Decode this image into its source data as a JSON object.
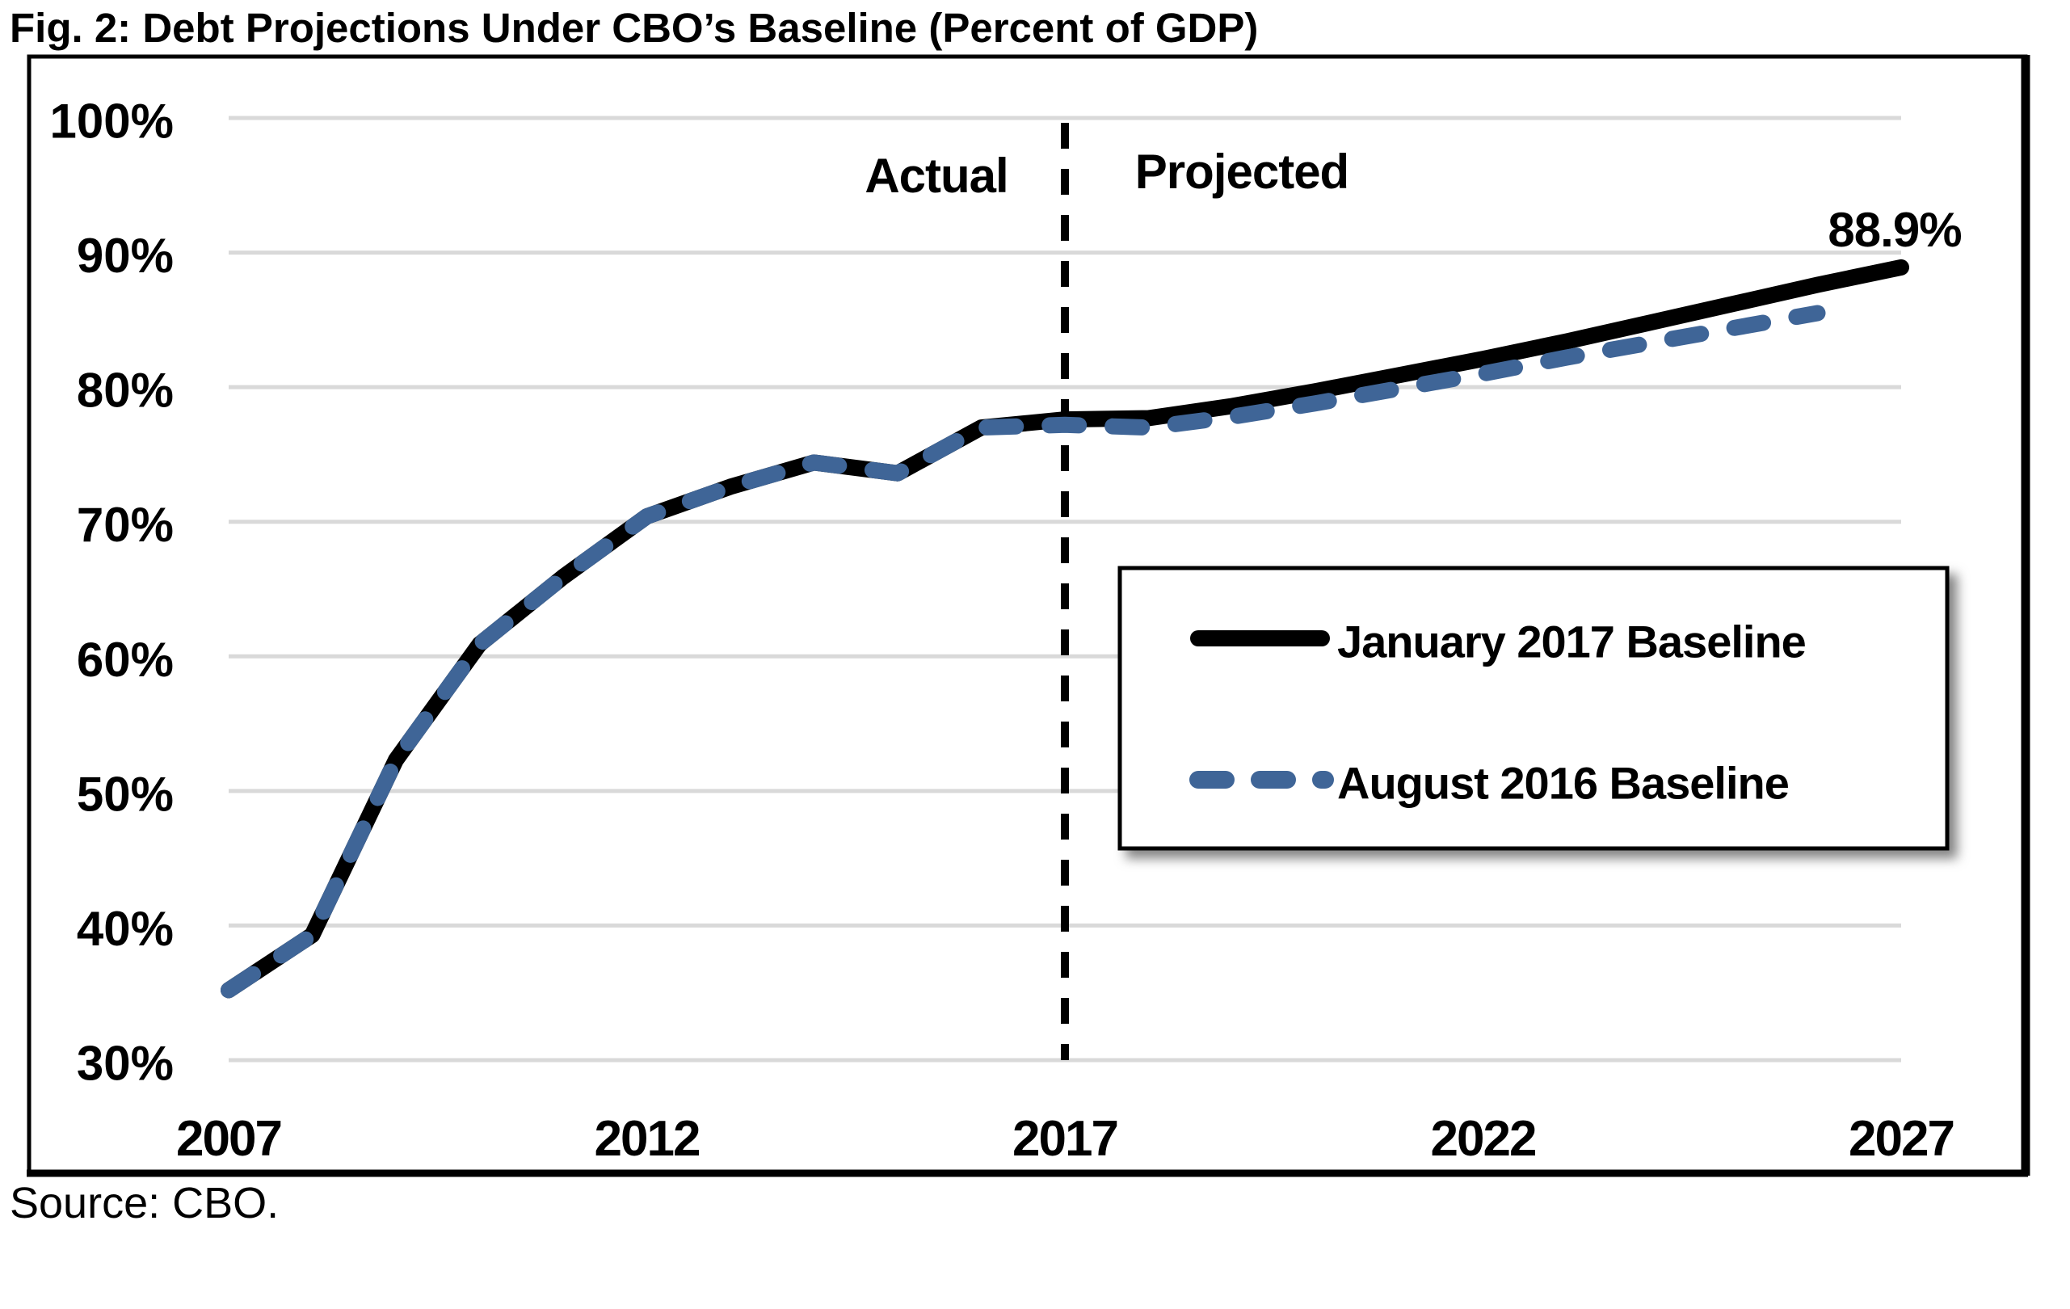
{
  "title": "Fig. 2: Debt Projections Under CBO’s Baseline (Percent of GDP)",
  "source_note": "Source: CBO.",
  "annotations": {
    "actual": "Actual",
    "projected": "Projected",
    "end_value_label": "88.9%"
  },
  "legend": {
    "items": [
      {
        "label": "January 2017 Baseline",
        "color": "#000000",
        "style": "solid"
      },
      {
        "label": "August 2016 Baseline",
        "color": "#3f6597",
        "style": "dashed"
      }
    ]
  },
  "colors": {
    "jan_2017_series": "#000000",
    "aug_2016_series": "#3f6597",
    "gridline": "#d9d9d9",
    "divider": "#000000",
    "frame": "#000000"
  },
  "chart_data": {
    "type": "line",
    "title": "Fig. 2: Debt Projections Under CBO’s Baseline (Percent of GDP)",
    "xlabel": "",
    "ylabel": "Percent of GDP",
    "grid": true,
    "legend_position": "center-right",
    "xlim": [
      2007,
      2027
    ],
    "ylim": [
      30,
      100
    ],
    "x": [
      2007,
      2008,
      2009,
      2010,
      2011,
      2012,
      2013,
      2014,
      2015,
      2016,
      2017,
      2018,
      2019,
      2020,
      2021,
      2022,
      2023,
      2024,
      2025,
      2026,
      2027
    ],
    "series": [
      {
        "name": "January 2017 Baseline",
        "color": "#000000",
        "style": "solid",
        "values": [
          35.2,
          39.3,
          52.3,
          60.9,
          65.9,
          70.4,
          72.6,
          74.4,
          73.6,
          77.0,
          77.6,
          77.7,
          78.6,
          79.7,
          80.9,
          82.1,
          83.4,
          84.8,
          86.2,
          87.6,
          88.9
        ]
      },
      {
        "name": "August 2016 Baseline",
        "color": "#3f6597",
        "style": "dashed",
        "values": [
          35.2,
          39.3,
          52.3,
          60.9,
          65.9,
          70.4,
          72.6,
          74.4,
          73.6,
          77.0,
          77.2,
          77.0,
          77.8,
          78.8,
          79.9,
          81.0,
          82.2,
          83.3,
          84.4,
          85.5
        ]
      }
    ],
    "y_ticks": [
      30,
      40,
      50,
      60,
      70,
      80,
      90,
      100
    ],
    "y_tick_labels": [
      "30%",
      "40%",
      "50%",
      "60%",
      "70%",
      "80%",
      "90%",
      "100%"
    ],
    "x_ticks": [
      2007,
      2012,
      2017,
      2022,
      2027
    ],
    "x_tick_labels": [
      "2007",
      "2012",
      "2017",
      "2022",
      "2027"
    ],
    "divider_x": 2017,
    "annotated_end_value": 88.9
  }
}
